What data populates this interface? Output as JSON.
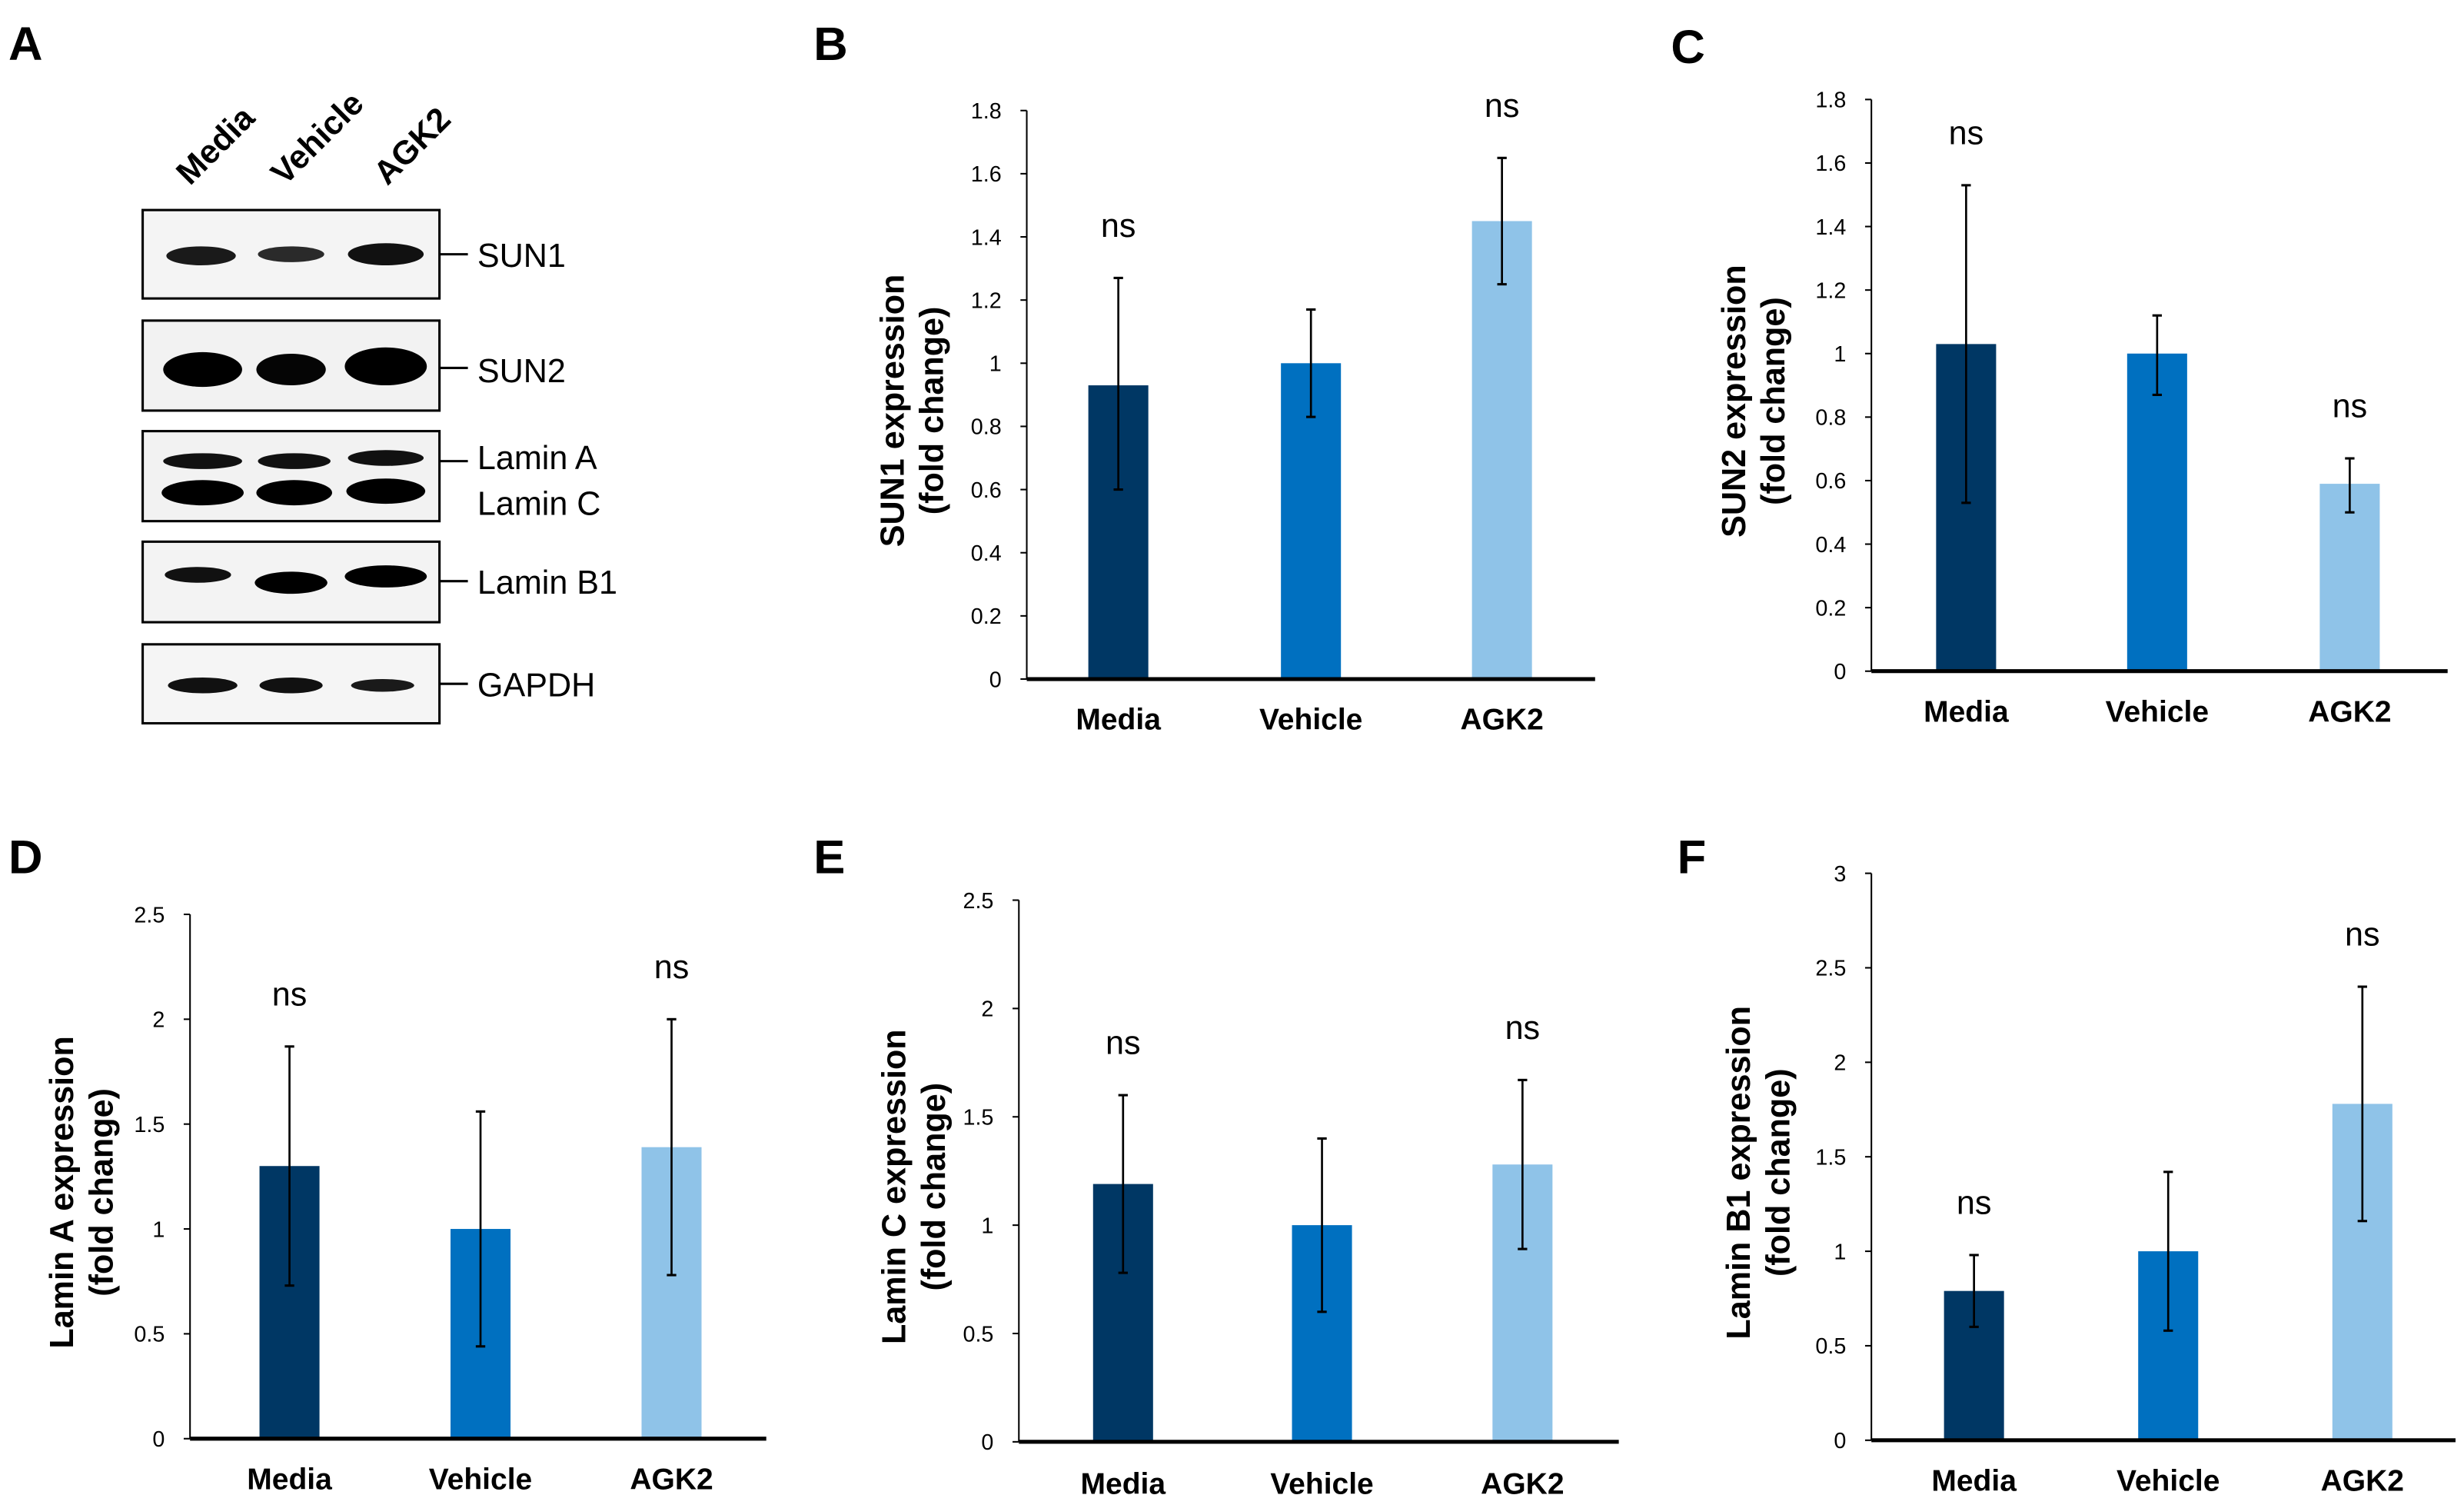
{
  "panel_letters": [
    "A",
    "B",
    "C",
    "D",
    "E",
    "F"
  ],
  "western_blot": {
    "lanes": [
      "Media",
      "Vehicle",
      "AGK2"
    ],
    "proteins": [
      "SUN1",
      "SUN2",
      "Lamin A",
      "Lamin C",
      "Lamin B1",
      "GAPDH"
    ]
  },
  "colors": {
    "Media": "#003764",
    "Vehicle": "#0070c0",
    "AGK2": "#8fc3e8"
  },
  "chart_data": [
    {
      "type": "bar",
      "panel": "B",
      "ylabel": [
        "SUN1 expression",
        "(fold change)"
      ],
      "categories": [
        "Media",
        "Vehicle",
        "AGK2"
      ],
      "values": [
        0.93,
        1.0,
        1.45
      ],
      "error_low": [
        0.6,
        0.83,
        1.25
      ],
      "error_high": [
        1.27,
        1.17,
        1.65
      ],
      "annotations": [
        "ns",
        "",
        "ns"
      ],
      "ylim": [
        0,
        1.8
      ],
      "ytick_step": 0.2,
      "yticks": [
        "0",
        "0.2",
        "0.4",
        "0.6",
        "0.8",
        "1",
        "1.2",
        "1.4",
        "1.6",
        "1.8"
      ]
    },
    {
      "type": "bar",
      "panel": "C",
      "ylabel": [
        "SUN2 expression",
        "(fold change)"
      ],
      "categories": [
        "Media",
        "Vehicle",
        "AGK2"
      ],
      "values": [
        1.03,
        1.0,
        0.59
      ],
      "error_low": [
        0.53,
        0.87,
        0.5
      ],
      "error_high": [
        1.53,
        1.12,
        0.67
      ],
      "annotations": [
        "ns",
        "",
        "ns"
      ],
      "ylim": [
        0,
        1.8
      ],
      "ytick_step": 0.2,
      "yticks": [
        "0",
        "0.2",
        "0.4",
        "0.6",
        "0.8",
        "1",
        "1.2",
        "1.4",
        "1.6",
        "1.8"
      ]
    },
    {
      "type": "bar",
      "panel": "D",
      "ylabel": [
        "Lamin A expression",
        "(fold change)"
      ],
      "categories": [
        "Media",
        "Vehicle",
        "AGK2"
      ],
      "values": [
        1.3,
        1.0,
        1.39
      ],
      "error_low": [
        0.73,
        0.44,
        0.78
      ],
      "error_high": [
        1.87,
        1.56,
        2.0
      ],
      "annotations": [
        "ns",
        "",
        "ns"
      ],
      "ylim": [
        0,
        2.5
      ],
      "ytick_step": 0.5,
      "yticks": [
        "0",
        "0.5",
        "1",
        "1.5",
        "2",
        "2.5"
      ]
    },
    {
      "type": "bar",
      "panel": "E",
      "ylabel": [
        "Lamin C expression",
        "(fold change)"
      ],
      "categories": [
        "Media",
        "Vehicle",
        "AGK2"
      ],
      "values": [
        1.19,
        1.0,
        1.28
      ],
      "error_low": [
        0.78,
        0.6,
        0.89
      ],
      "error_high": [
        1.6,
        1.4,
        1.67
      ],
      "annotations": [
        "ns",
        "",
        "ns"
      ],
      "ylim": [
        0,
        2.5
      ],
      "ytick_step": 0.5,
      "yticks": [
        "0",
        "0.5",
        "1",
        "1.5",
        "2",
        "2.5"
      ]
    },
    {
      "type": "bar",
      "panel": "F",
      "ylabel": [
        "Lamin B1 expression",
        "(fold change)"
      ],
      "categories": [
        "Media",
        "Vehicle",
        "AGK2"
      ],
      "values": [
        0.79,
        1.0,
        1.78
      ],
      "error_low": [
        0.6,
        0.58,
        1.16
      ],
      "error_high": [
        0.98,
        1.42,
        2.4
      ],
      "annotations": [
        "ns",
        "",
        "ns"
      ],
      "ylim": [
        0,
        3
      ],
      "ytick_step": 0.5,
      "yticks": [
        "0",
        "0.5",
        "1",
        "1.5",
        "2",
        "2.5",
        "3"
      ]
    }
  ]
}
